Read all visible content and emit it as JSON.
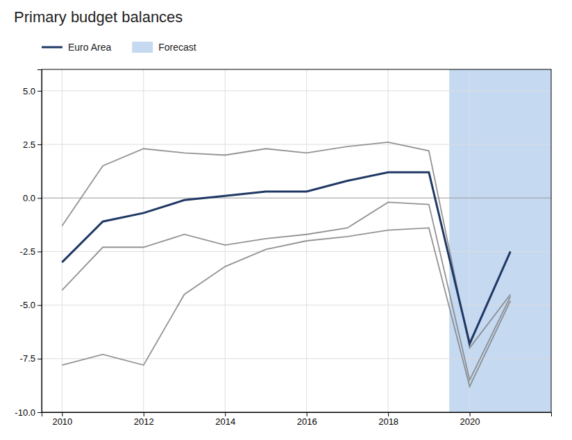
{
  "chart_data": {
    "type": "line",
    "title": "Primary budget balances",
    "x": [
      2010,
      2011,
      2012,
      2013,
      2014,
      2015,
      2016,
      2017,
      2018,
      2019,
      2020,
      2021
    ],
    "series": [
      {
        "color": "#808080",
        "values": [
          -1.3,
          1.5,
          2.3,
          2.1,
          2.0,
          2.3,
          2.1,
          2.4,
          2.6,
          2.2,
          -7.0,
          -4.5
        ]
      },
      {
        "color": "#808080",
        "values": [
          -4.3,
          -2.3,
          -2.3,
          -1.7,
          -2.2,
          -1.9,
          -1.7,
          -1.4,
          -0.2,
          -0.3,
          -8.5,
          -4.6
        ]
      },
      {
        "color": "#808080",
        "values": [
          -7.8,
          -7.3,
          -7.8,
          -4.5,
          -3.2,
          -2.4,
          -2.0,
          -1.8,
          -1.5,
          -1.4,
          -8.8,
          -4.8
        ]
      },
      {
        "name": "Euro Area",
        "color": "#1f3864",
        "values": [
          -3.0,
          -1.1,
          -0.7,
          -0.1,
          0.1,
          0.3,
          0.3,
          0.8,
          1.2,
          1.2,
          -6.8,
          -2.5
        ]
      }
    ],
    "spans": [
      {
        "name": "Forecast",
        "x": [
          2019.5,
          2022.0
        ],
        "color": "#c5d9f1"
      }
    ],
    "xlim": [
      2009.5,
      2022.0
    ],
    "ylim": [
      -10.0,
      6.0
    ],
    "xticks": [
      2010,
      2012,
      2014,
      2016,
      2018,
      2020
    ],
    "yticks": [
      {
        "value": -10.0,
        "label": "-10.0"
      },
      -7.5,
      {
        "value": -5.0,
        "label": "-5.0"
      },
      -2.5,
      {
        "value": 0.0,
        "label": "0.0"
      },
      2.5,
      {
        "value": 5.0,
        "label": "5.0"
      }
    ],
    "grid": true,
    "legend": "top"
  }
}
